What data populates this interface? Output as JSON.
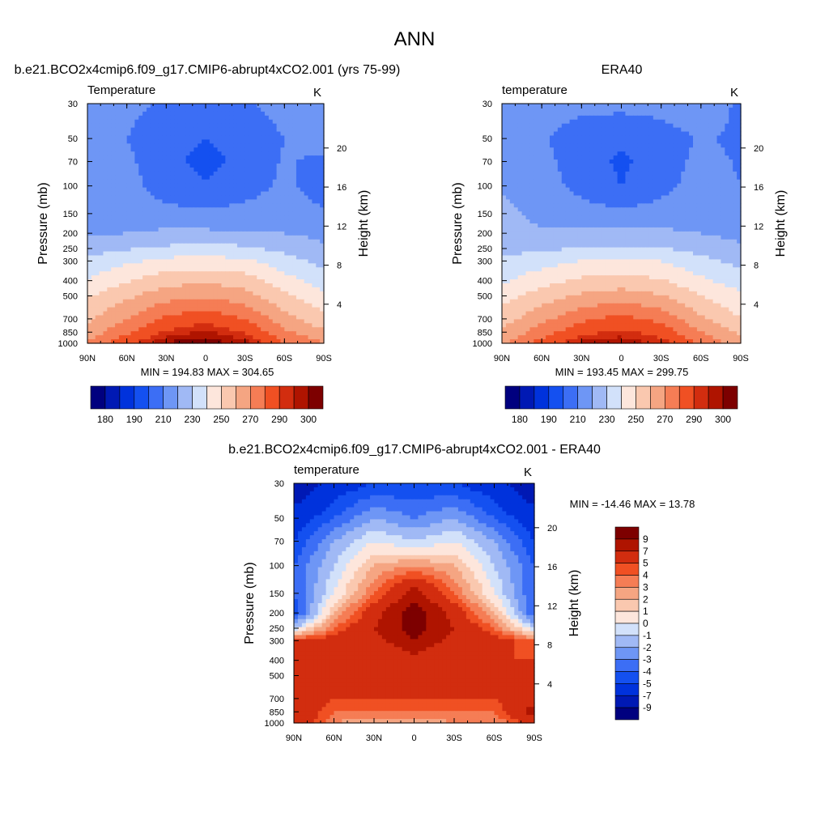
{
  "figure": {
    "title": "ANN"
  },
  "colors": {
    "temperature_ramp": [
      "#00007f",
      "#0019b4",
      "#0032dc",
      "#1450f0",
      "#3c6ef5",
      "#6e96f5",
      "#a0b9f5",
      "#d2e1fa",
      "#fde6dc",
      "#fac8af",
      "#f5a582",
      "#f57d55",
      "#f05023",
      "#d22d0f",
      "#af1400",
      "#7d0000"
    ],
    "difference_ramp": [
      "#00007f",
      "#0019b4",
      "#0032dc",
      "#1450f0",
      "#3c6ef5",
      "#6e96f5",
      "#a0b9f5",
      "#d2e1fa",
      "#fde6dc",
      "#fac8af",
      "#f5a582",
      "#f57d55",
      "#f05023",
      "#d22d0f",
      "#af1400",
      "#7d0000"
    ]
  },
  "chart_data": [
    {
      "type": "heatmap",
      "title": "b.e21.BCO2x4cmip6.f09_g17.CMIP6-abrupt4xCO2.001 (yrs 75-99)",
      "subtitle_left": "Temperature",
      "subtitle_right": "K",
      "xlabel": "",
      "ylabel": "Pressure (mb)",
      "ylabel_right": "Height (km)",
      "x_ticks": [
        "90N",
        "60N",
        "30N",
        "0",
        "30S",
        "60S",
        "90S"
      ],
      "y_ticks": [
        30,
        50,
        70,
        100,
        150,
        200,
        250,
        300,
        400,
        500,
        700,
        850,
        1000
      ],
      "y_scale": "log",
      "ylim": [
        1000,
        30
      ],
      "height_ticks": [
        4,
        8,
        12,
        16,
        20
      ],
      "stats": "MIN = 194.83  MAX = 304.65",
      "min": 194.83,
      "max": 304.65,
      "colorbar_labels": [
        "180",
        "190",
        "210",
        "230",
        "250",
        "270",
        "290",
        "300"
      ],
      "pressure_levels": [
        30,
        50,
        70,
        100,
        150,
        200,
        250,
        300,
        400,
        500,
        700,
        850,
        1000
      ],
      "latitudes": [
        90,
        60,
        30,
        0,
        -30,
        -60,
        -90
      ],
      "values": [
        [
          218,
          213,
          208,
          207,
          209,
          214,
          216
        ],
        [
          214,
          210,
          203,
          200,
          203,
          210,
          214
        ],
        [
          212,
          212,
          203,
          197,
          203,
          211,
          208
        ],
        [
          214,
          214,
          205,
          201,
          206,
          212,
          206
        ],
        [
          215,
          215,
          213,
          212,
          213,
          214,
          211
        ],
        [
          219,
          220,
          222,
          222,
          221,
          220,
          218
        ],
        [
          226,
          229,
          232,
          233,
          232,
          227,
          221
        ],
        [
          232,
          238,
          243,
          244,
          242,
          234,
          227
        ],
        [
          241,
          249,
          256,
          258,
          255,
          244,
          235
        ],
        [
          249,
          258,
          266,
          269,
          264,
          252,
          242
        ],
        [
          258,
          270,
          282,
          287,
          280,
          264,
          253
        ],
        [
          264,
          278,
          291,
          296,
          289,
          272,
          262
        ],
        [
          272,
          288,
          301,
          304,
          298,
          280,
          270
        ]
      ],
      "missing_label": ""
    },
    {
      "type": "heatmap",
      "title": "ERA40",
      "subtitle_left": "temperature",
      "subtitle_right": "K",
      "xlabel": "",
      "ylabel": "Pressure (mb)",
      "ylabel_right": "Height (km)",
      "x_ticks": [
        "90N",
        "60N",
        "30N",
        "0",
        "30S",
        "60S",
        "90S"
      ],
      "y_ticks": [
        30,
        50,
        70,
        100,
        150,
        200,
        250,
        300,
        400,
        500,
        700,
        850,
        1000
      ],
      "y_scale": "log",
      "ylim": [
        1000,
        30
      ],
      "height_ticks": [
        4,
        8,
        12,
        16,
        20
      ],
      "stats": "MIN = 193.45  MAX = 299.75",
      "min": 193.45,
      "max": 299.75,
      "colorbar_labels": [
        "180",
        "190",
        "210",
        "230",
        "250",
        "270",
        "290",
        "300"
      ],
      "pressure_levels": [
        30,
        50,
        70,
        100,
        150,
        200,
        250,
        300,
        400,
        500,
        700,
        850,
        1000
      ],
      "latitudes": [
        90,
        60,
        30,
        0,
        -30,
        -60,
        -90
      ],
      "values": [
        [
          217,
          214,
          213,
          213,
          214,
          217,
          208
        ],
        [
          213,
          211,
          205,
          202,
          205,
          211,
          208
        ],
        [
          214,
          213,
          205,
          198,
          205,
          213,
          209
        ],
        [
          218,
          214,
          207,
          200,
          207,
          214,
          210
        ],
        [
          224,
          216,
          214,
          212,
          214,
          215,
          212
        ],
        [
          223,
          222,
          223,
          222,
          222,
          220,
          217
        ],
        [
          227,
          228,
          231,
          232,
          231,
          226,
          222
        ],
        [
          232,
          236,
          240,
          242,
          240,
          233,
          227
        ],
        [
          238,
          246,
          252,
          254,
          251,
          242,
          235
        ],
        [
          246,
          255,
          262,
          265,
          261,
          250,
          242
        ],
        [
          255,
          267,
          278,
          283,
          277,
          262,
          250
        ],
        [
          262,
          275,
          287,
          292,
          286,
          270,
          258
        ],
        [
          268,
          284,
          297,
          299,
          294,
          278,
          263
        ]
      ],
      "missing_label": ""
    },
    {
      "type": "heatmap",
      "title": "b.e21.BCO2x4cmip6.f09_g17.CMIP6-abrupt4xCO2.001 - ERA40",
      "subtitle_left": "temperature",
      "subtitle_right": "K",
      "xlabel": "",
      "ylabel": "Pressure (mb)",
      "ylabel_right": "Height (km)",
      "x_ticks": [
        "90N",
        "60N",
        "30N",
        "0",
        "30S",
        "60S",
        "90S"
      ],
      "y_ticks": [
        30,
        50,
        70,
        100,
        150,
        200,
        250,
        300,
        400,
        500,
        700,
        850,
        1000
      ],
      "y_scale": "log",
      "ylim": [
        1000,
        30
      ],
      "height_ticks": [
        4,
        8,
        12,
        16,
        20
      ],
      "stats": "MIN = -14.46  MAX =  13.78",
      "min": -14.46,
      "max": 13.78,
      "colorbar_labels": [
        "9",
        "7",
        "5",
        "4",
        "3",
        "2",
        "1",
        "0",
        "-1",
        "-2",
        "-3",
        "-4",
        "-5",
        "-7",
        "-9"
      ],
      "pressure_levels": [
        30,
        50,
        70,
        100,
        150,
        200,
        250,
        300,
        400,
        500,
        700,
        850,
        1000
      ],
      "latitudes": [
        90,
        60,
        30,
        0,
        -30,
        -60,
        -90
      ],
      "values": [
        [
          -9,
          -6,
          -5,
          -5,
          -5,
          -6,
          -9
        ],
        [
          -6,
          -4,
          -2,
          -3,
          -2,
          -4,
          -6
        ],
        [
          -5,
          -2,
          0,
          -1,
          0,
          -2,
          -5
        ],
        [
          -4,
          -1,
          2,
          3,
          2,
          -1,
          -4
        ],
        [
          -4,
          0,
          4,
          8,
          4,
          0,
          -4
        ],
        [
          -5,
          2,
          6,
          10,
          6,
          2,
          -4
        ],
        [
          -1,
          4,
          7,
          10,
          7,
          4,
          -1
        ],
        [
          5,
          6,
          6,
          9,
          6,
          6,
          4
        ],
        [
          5,
          7,
          5,
          6,
          5,
          5,
          5
        ],
        [
          5,
          5,
          5,
          5,
          5,
          5,
          5
        ],
        [
          6,
          5,
          5,
          5,
          5,
          5,
          6
        ],
        [
          7,
          4,
          4,
          4,
          4,
          4,
          8
        ],
        [
          7,
          3,
          2,
          2,
          3,
          3,
          6
        ]
      ],
      "missing_label": ""
    }
  ]
}
